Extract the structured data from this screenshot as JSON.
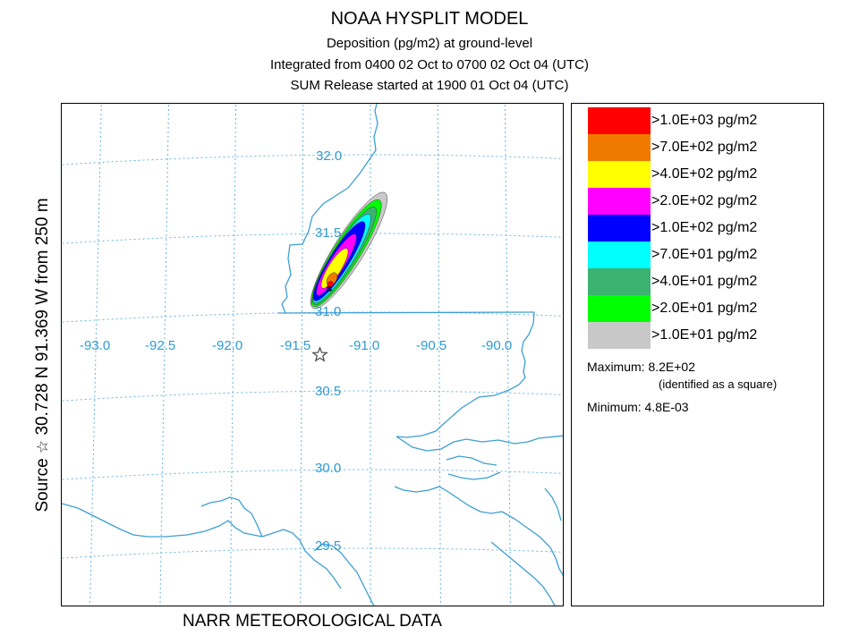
{
  "header": {
    "title": "NOAA HYSPLIT MODEL",
    "line1": "Deposition  (pg/m2) at ground-level",
    "line2": "Integrated from 0400 02 Oct to 0700 02 Oct 04 (UTC)",
    "line3": "SUM  Release started at 1900 01 Oct 04 (UTC)"
  },
  "side_label": {
    "prefix": "Source",
    "star": "☆",
    "text": "30.728  N  91.369  W    from   250 m"
  },
  "bottom_label": "NARR METEOROLOGICAL DATA",
  "map": {
    "lon_labels": [
      "-93.0",
      "-92.5",
      "-92.0",
      "-91.5",
      "-91.0",
      "-90.5",
      "-90.0"
    ],
    "lat_labels": [
      "32.0",
      "31.5",
      "31.0",
      "30.5",
      "30.0",
      "29.5"
    ],
    "source": {
      "lat": 30.728,
      "lon": -91.369,
      "symbol": "star-icon"
    },
    "max_marker": "square",
    "colors": {
      "grid": "#6ab3e0",
      "coast": "#3d9fd2",
      "labels": "#2e9bd0"
    }
  },
  "legend": {
    "items": [
      {
        "label": ">1.0E+03 pg/m2",
        "color": "#ff0000"
      },
      {
        "label": ">7.0E+02 pg/m2",
        "color": "#f07a00"
      },
      {
        "label": ">4.0E+02 pg/m2",
        "color": "#ffff00"
      },
      {
        "label": ">2.0E+02 pg/m2",
        "color": "#ff00ff"
      },
      {
        "label": ">1.0E+02 pg/m2",
        "color": "#0000ff"
      },
      {
        "label": ">7.0E+01 pg/m2",
        "color": "#00ffff"
      },
      {
        "label": ">4.0E+01 pg/m2",
        "color": "#3cb371"
      },
      {
        "label": ">2.0E+01 pg/m2",
        "color": "#00ff00"
      },
      {
        "label": ">1.0E+01 pg/m2",
        "color": "#c8c8c8"
      }
    ],
    "maximum": "Maximum: 8.2E+02",
    "maximum_note": "(identified as a square)",
    "minimum": "Minimum: 4.8E-03"
  }
}
